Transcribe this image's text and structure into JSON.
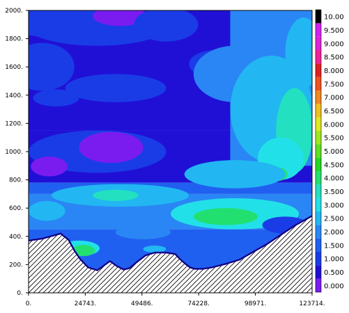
{
  "chart_data": {
    "type": "heatmap",
    "title": "",
    "xlabel": "",
    "ylabel": "",
    "xlim": [
      0,
      123714
    ],
    "ylim": [
      0,
      2000
    ],
    "x_ticks": [
      "0.",
      "24743.",
      "49486.",
      "74228.",
      "98971.",
      "123714."
    ],
    "y_ticks": [
      "0.",
      "200.",
      "400.",
      "600.",
      "800.",
      "1000.",
      "1200.",
      "1400.",
      "1600.",
      "1800.",
      "2000."
    ],
    "colorbar": {
      "labels": [
        "0.000",
        "0.500",
        "1.000",
        "1.500",
        "2.000",
        "2.500",
        "3.000",
        "3.500",
        "4.000",
        "4.500",
        "5.000",
        "5.500",
        "6.000",
        "6.500",
        "7.000",
        "7.500",
        "8.000",
        "8.500",
        "9.000",
        "9.500",
        "10.00"
      ],
      "colors": [
        "#7a1cf0",
        "#2010d6",
        "#1a3ce6",
        "#2060f0",
        "#2a86f4",
        "#22b6f2",
        "#22e0e8",
        "#22e0c0",
        "#22e070",
        "#22d822",
        "#5ee020",
        "#9ee820",
        "#e0e820",
        "#f0c020",
        "#f08820",
        "#f05020",
        "#e02020",
        "#f0209a",
        "#e020d8",
        "#d020f0"
      ]
    },
    "terrain": {
      "x": [
        0,
        6200,
        14000,
        17500,
        20000,
        22500,
        26000,
        30000,
        33000,
        35500,
        38500,
        41500,
        44000,
        47000,
        51000,
        55000,
        60000,
        64000,
        66000,
        68500,
        70500,
        72500,
        76000,
        80000,
        86000,
        92000,
        98000,
        104000,
        110000,
        116000,
        123714
      ],
      "y": [
        370,
        385,
        420,
        375,
        300,
        240,
        180,
        160,
        195,
        225,
        190,
        165,
        175,
        215,
        265,
        285,
        285,
        275,
        240,
        205,
        180,
        170,
        170,
        180,
        205,
        235,
        290,
        345,
        410,
        475,
        545
      ]
    },
    "blobs": [
      {
        "x": 10000,
        "y": 1960,
        "rx": 22000,
        "ry": 150,
        "c": 2
      },
      {
        "x": 30000,
        "y": 1880,
        "rx": 30000,
        "ry": 130,
        "c": 2
      },
      {
        "x": 40000,
        "y": 1960,
        "rx": 12000,
        "ry": 70,
        "c": 0
      },
      {
        "x": 6000,
        "y": 1600,
        "rx": 14000,
        "ry": 170,
        "c": 2
      },
      {
        "x": 60000,
        "y": 1900,
        "rx": 14000,
        "ry": 120,
        "c": 2
      },
      {
        "x": 38000,
        "y": 1450,
        "rx": 22000,
        "ry": 100,
        "c": 2
      },
      {
        "x": 12000,
        "y": 1380,
        "rx": 10000,
        "ry": 60,
        "c": 2
      },
      {
        "x": 82000,
        "y": 1620,
        "rx": 12000,
        "ry": 100,
        "c": 2
      },
      {
        "x": 30000,
        "y": 1000,
        "rx": 30000,
        "ry": 150,
        "c": 2
      },
      {
        "x": 36000,
        "y": 1030,
        "rx": 14000,
        "ry": 110,
        "c": 0
      },
      {
        "x": 9000,
        "y": 895,
        "rx": 8000,
        "ry": 70,
        "c": 0
      },
      {
        "x": 90000,
        "y": 1550,
        "rx": 18000,
        "ry": 200,
        "c": 4
      },
      {
        "x": 120000,
        "y": 1700,
        "rx": 8000,
        "ry": 250,
        "c": 5
      },
      {
        "x": 106000,
        "y": 1300,
        "rx": 18000,
        "ry": 380,
        "c": 5
      },
      {
        "x": 116000,
        "y": 1150,
        "rx": 8000,
        "ry": 300,
        "c": 7
      },
      {
        "x": 110000,
        "y": 950,
        "rx": 10000,
        "ry": 150,
        "c": 6
      },
      {
        "x": 108000,
        "y": 840,
        "rx": 5000,
        "ry": 50,
        "c": 8
      },
      {
        "x": 90000,
        "y": 840,
        "rx": 22000,
        "ry": 100,
        "c": 5
      },
      {
        "x": 40000,
        "y": 690,
        "rx": 30000,
        "ry": 80,
        "c": 5
      },
      {
        "x": 38000,
        "y": 690,
        "rx": 10000,
        "ry": 40,
        "c": 7
      },
      {
        "x": 8000,
        "y": 580,
        "rx": 8000,
        "ry": 70,
        "c": 5
      },
      {
        "x": 90000,
        "y": 560,
        "rx": 28000,
        "ry": 110,
        "c": 6
      },
      {
        "x": 86000,
        "y": 540,
        "rx": 14000,
        "ry": 60,
        "c": 8
      },
      {
        "x": 50000,
        "y": 430,
        "rx": 12000,
        "ry": 50,
        "c": 4
      },
      {
        "x": 22000,
        "y": 315,
        "rx": 9000,
        "ry": 55,
        "c": 6
      },
      {
        "x": 24000,
        "y": 300,
        "rx": 5000,
        "ry": 40,
        "c": 8
      },
      {
        "x": 55000,
        "y": 310,
        "rx": 5000,
        "ry": 25,
        "c": 5
      },
      {
        "x": 112000,
        "y": 480,
        "rx": 10000,
        "ry": 60,
        "c": 2
      }
    ]
  }
}
